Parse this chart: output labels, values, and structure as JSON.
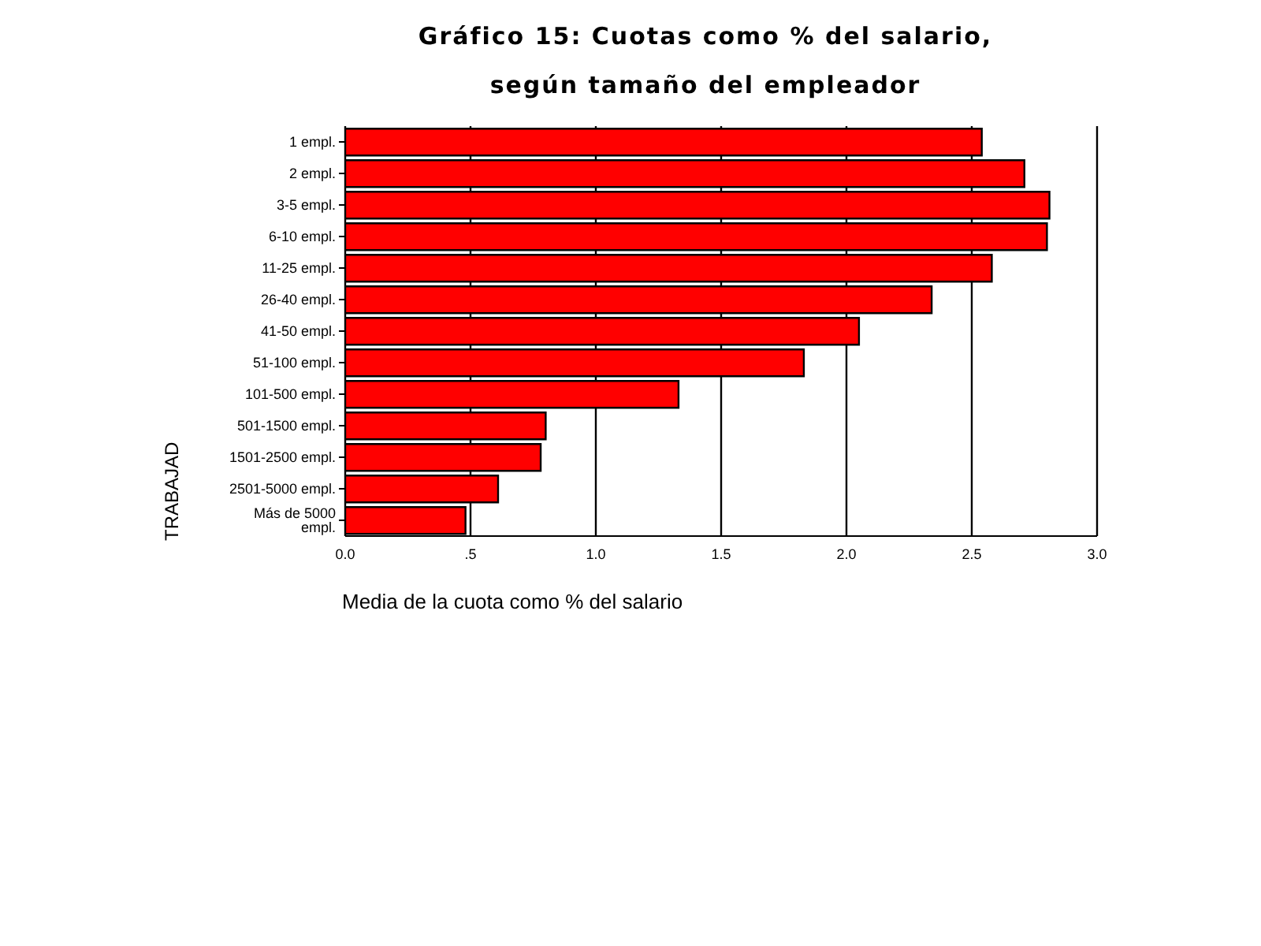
{
  "chart_data": {
    "type": "bar",
    "orientation": "horizontal",
    "title": "Gráfico 15: Cuotas como % del salario,\nsegún tamaño del empleador",
    "xlabel": "Media de la cuota como % del salario",
    "ylabel": "TRABAJAD",
    "categories": [
      "1 empl.",
      "2 empl.",
      "3-5 empl.",
      "6-10 empl.",
      "11-25 empl.",
      "26-40 empl.",
      "41-50 empl.",
      "51-100 empl.",
      "101-500 empl.",
      "501-1500 empl.",
      "1501-2500 empl.",
      "2501-5000 empl.",
      "Más de 5000 empl."
    ],
    "values": [
      2.54,
      2.71,
      2.81,
      2.8,
      2.58,
      2.34,
      2.05,
      1.83,
      1.33,
      0.8,
      0.78,
      0.61,
      0.48
    ],
    "color": "#ff0000",
    "xlim": [
      0,
      3
    ],
    "xticks": [
      {
        "value": 0,
        "label": "0.0"
      },
      {
        "value": 0.5,
        "label": ".5"
      },
      {
        "value": 1,
        "label": "1.0"
      },
      {
        "value": 1.5,
        "label": "1.5"
      },
      {
        "value": 2,
        "label": "2.0"
      },
      {
        "value": 2.5,
        "label": "2.5"
      },
      {
        "value": 3,
        "label": "3.0"
      }
    ],
    "grid": "x",
    "legend": false
  }
}
